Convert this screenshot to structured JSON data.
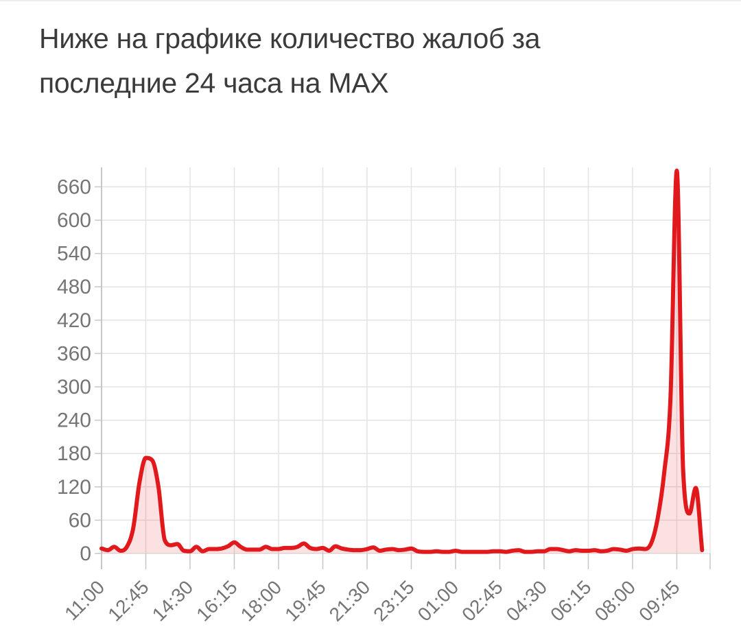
{
  "header": {
    "title": "Ниже на графике количество жалоб за\nпоследние 24 часа на MAX"
  },
  "chart_data": {
    "type": "area",
    "title": "Ниже на графике количество жалоб за последние 24 часа на MAX",
    "xlabel": "",
    "ylabel": "",
    "x_tick_labels": [
      "11:00",
      "12:45",
      "14:30",
      "16:15",
      "18:00",
      "19:45",
      "21:30",
      "23:15",
      "01:00",
      "02:45",
      "04:30",
      "06:15",
      "08:00",
      "09:45"
    ],
    "x_label_every_n_points": 7,
    "x_step_minutes": 15,
    "values": [
      9,
      6,
      12,
      5,
      12,
      45,
      128,
      172,
      168,
      120,
      24,
      15,
      17,
      5,
      4,
      12,
      4,
      8,
      8,
      9,
      13,
      20,
      12,
      7,
      7,
      7,
      12,
      8,
      8,
      10,
      10,
      12,
      18,
      10,
      8,
      10,
      5,
      13,
      9,
      7,
      6,
      6,
      8,
      11,
      5,
      7,
      8,
      6,
      7,
      9,
      4,
      3,
      3,
      4,
      3,
      3,
      5,
      3,
      3,
      3,
      3,
      3,
      4,
      4,
      3,
      5,
      6,
      3,
      3,
      4,
      4,
      8,
      8,
      6,
      4,
      6,
      5,
      5,
      6,
      4,
      5,
      8,
      7,
      5,
      8,
      9,
      8,
      20,
      65,
      145,
      280,
      689,
      150,
      72,
      118,
      6
    ],
    "y_ticks": [
      0,
      60,
      120,
      180,
      240,
      300,
      360,
      420,
      480,
      540,
      600,
      660
    ],
    "ylim": [
      0,
      700
    ],
    "grid": true,
    "legend": false,
    "line_color": "#e1191c",
    "fill_color": "rgba(225,25,28,0.13)",
    "grid_color": "#e3e3e3",
    "axis_color": "#c7c7c7",
    "tick_label_color": "#757575",
    "title_color": "#3b3b3b"
  }
}
